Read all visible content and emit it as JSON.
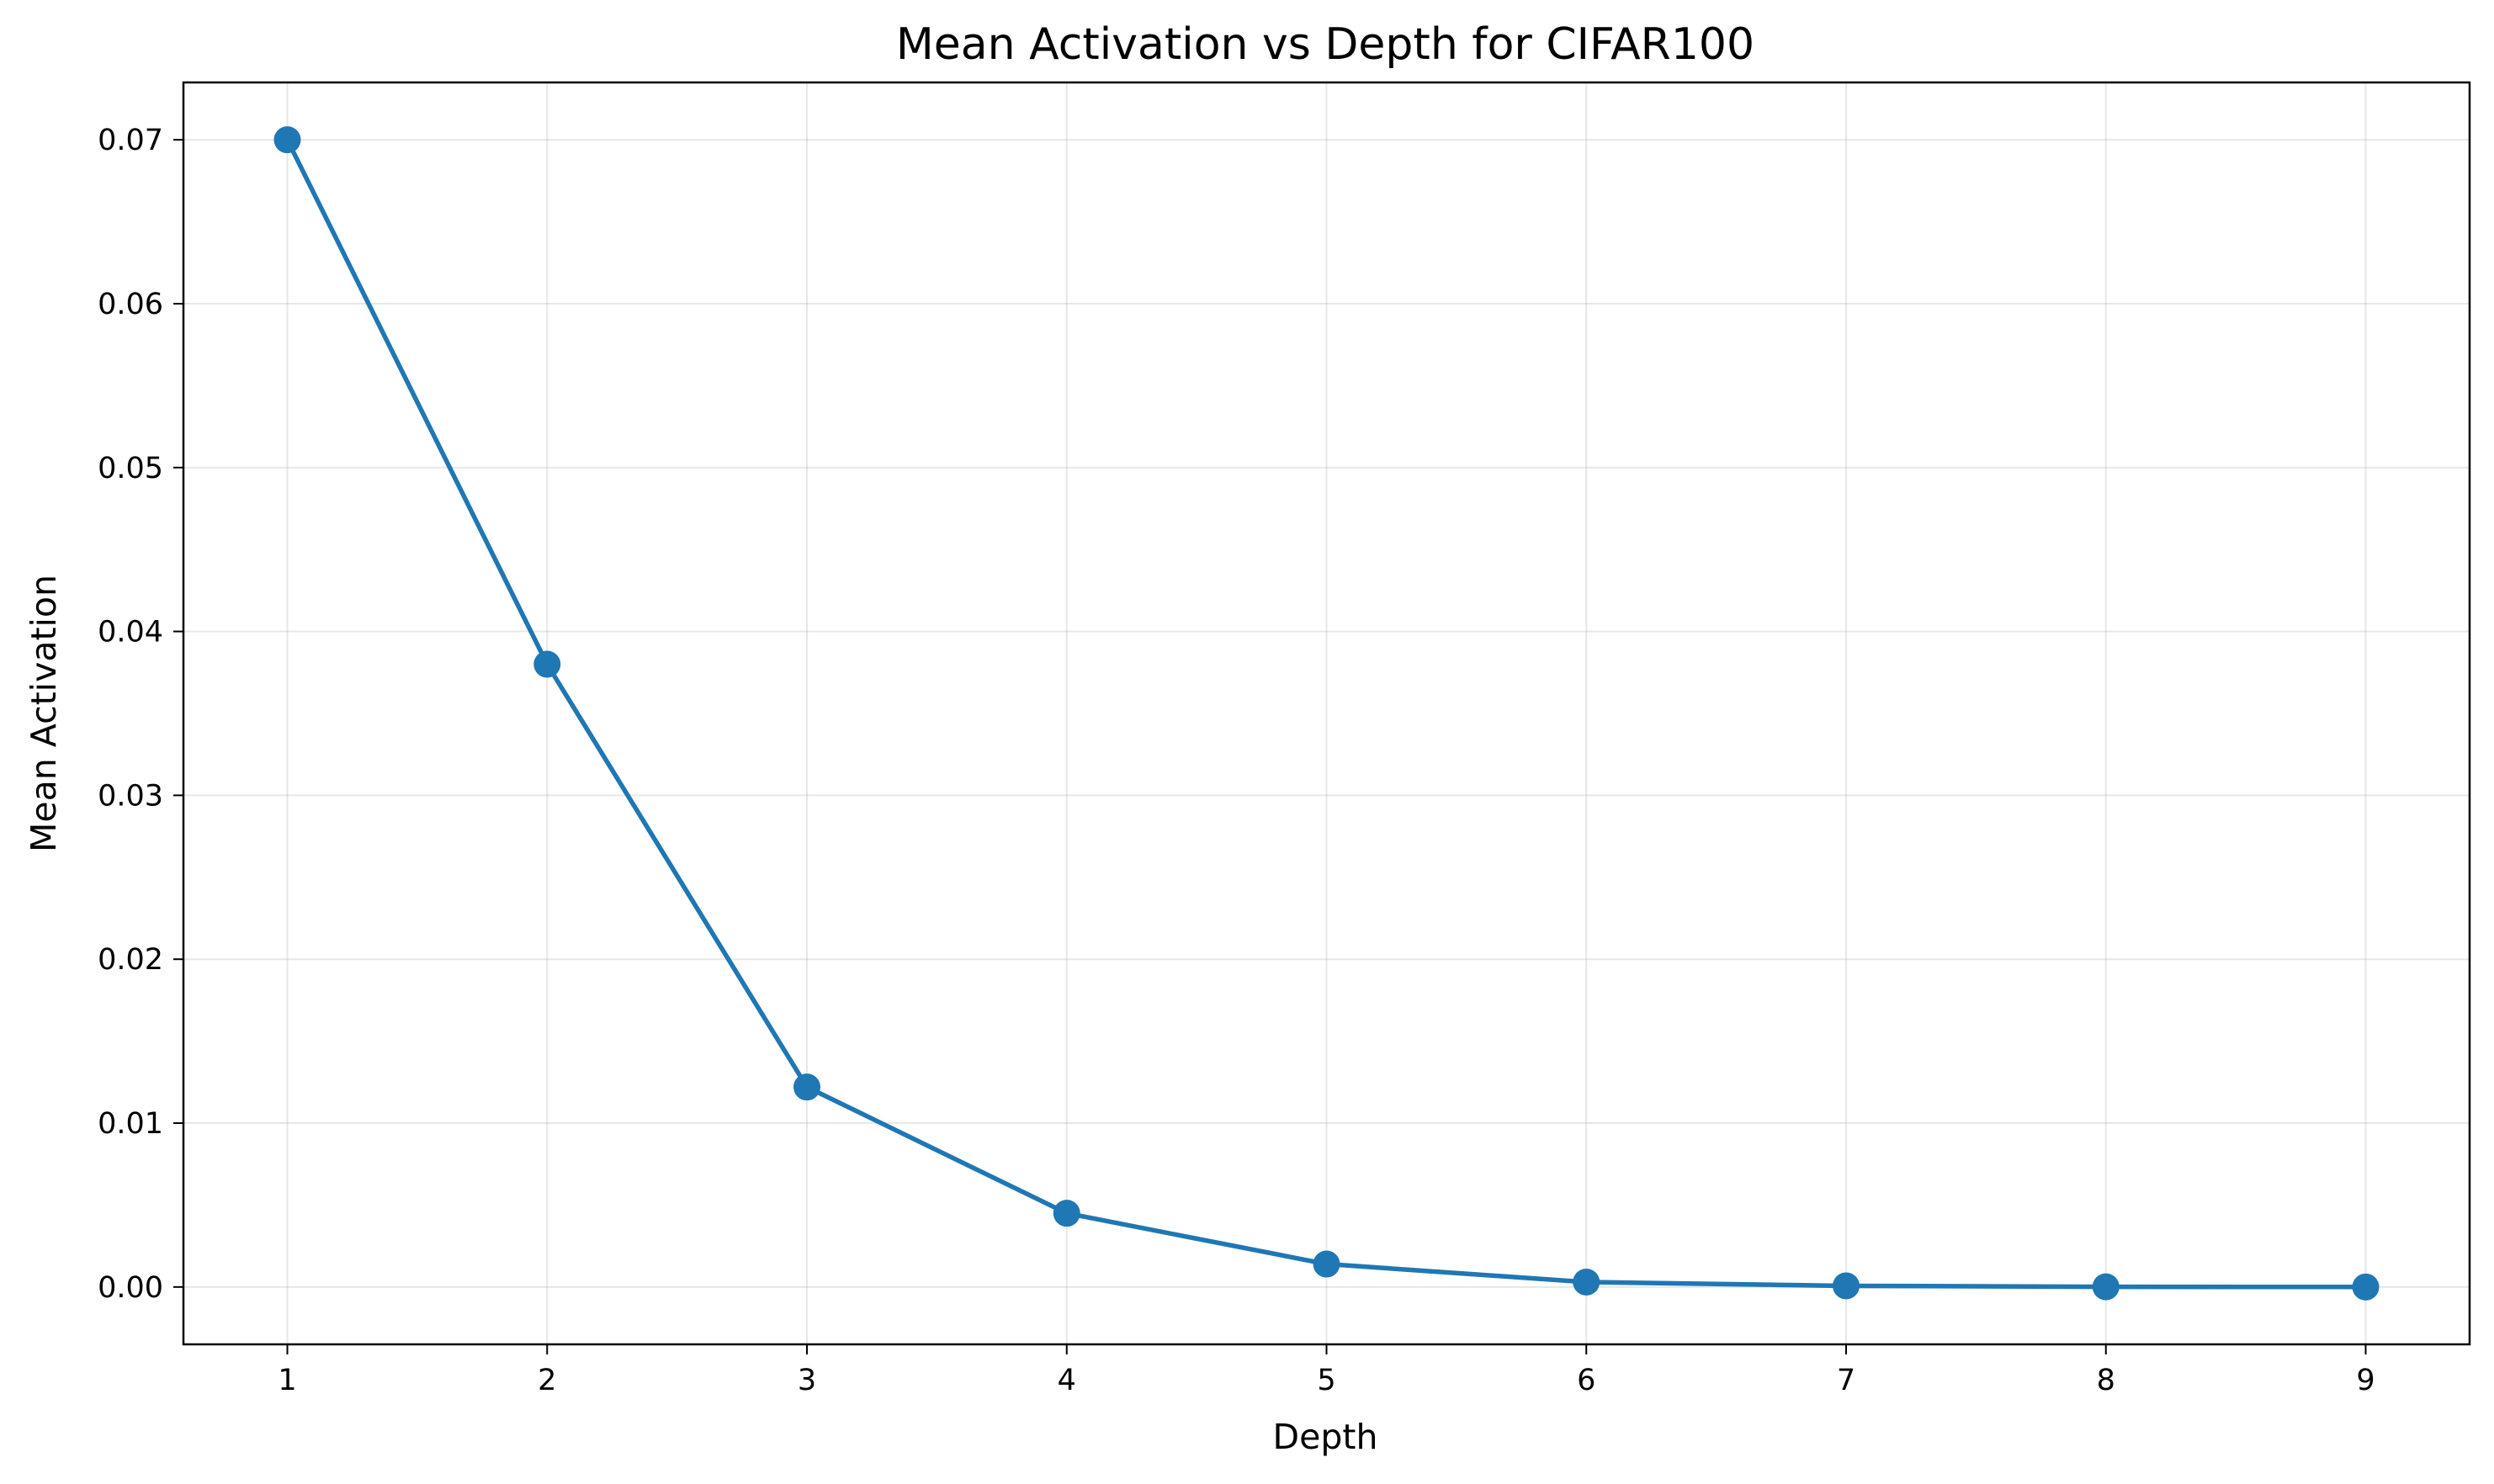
{
  "chart_data": {
    "type": "line",
    "title": "Mean Activation vs Depth for CIFAR100",
    "xlabel": "Depth",
    "ylabel": "Mean Activation",
    "x": [
      1,
      2,
      3,
      4,
      5,
      6,
      7,
      8,
      9
    ],
    "series": [
      {
        "values": [
          0.07,
          0.038,
          0.0122,
          0.0045,
          0.0014,
          0.0003,
          7e-05,
          1e-05,
          0.0
        ]
      }
    ],
    "xlim": [
      0.6,
      9.4
    ],
    "ylim": [
      -0.0035,
      0.0735
    ],
    "xticks": [
      1,
      2,
      3,
      4,
      5,
      6,
      7,
      8,
      9
    ],
    "xtick_labels": [
      "1",
      "2",
      "3",
      "4",
      "5",
      "6",
      "7",
      "8",
      "9"
    ],
    "yticks": [
      0.0,
      0.01,
      0.02,
      0.03,
      0.04,
      0.05,
      0.06,
      0.07
    ],
    "ytick_labels": [
      "0.00",
      "0.01",
      "0.02",
      "0.03",
      "0.04",
      "0.05",
      "0.06",
      "0.07"
    ],
    "grid": true,
    "legend": "none",
    "marker": "circle",
    "colors": {
      "series": "#1f77b4"
    }
  }
}
